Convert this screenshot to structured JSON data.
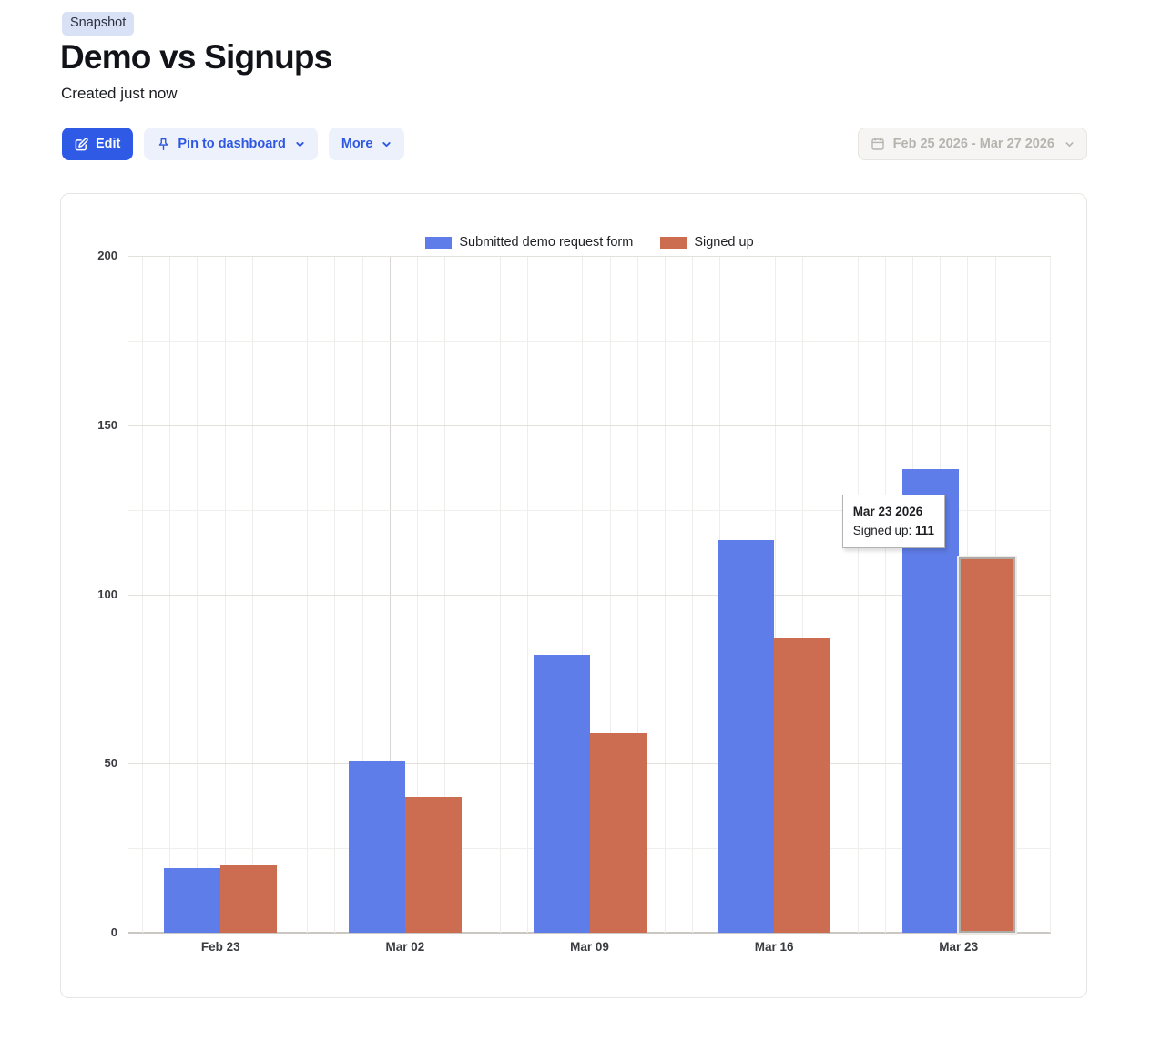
{
  "page": {
    "badge": "Snapshot",
    "title": "Demo vs Signups",
    "subtitle": "Created just now"
  },
  "toolbar": {
    "edit_label": "Edit",
    "pin_label": "Pin to dashboard",
    "more_label": "More",
    "date_range": "Feb 25 2026 - Mar 27 2026"
  },
  "colors": {
    "primary_blue": "#2f5ae5",
    "light_button_bg": "#edf1fb",
    "light_button_text": "#2f58e0",
    "series_blue": "#5f7de8",
    "series_red": "#cc6d52",
    "date_text_gray": "#b7b4af"
  },
  "chart_data": {
    "type": "bar",
    "title": "",
    "categories": [
      "Feb 23",
      "Mar 02",
      "Mar 09",
      "Mar 16",
      "Mar 23"
    ],
    "series": [
      {
        "name": "Submitted demo request form",
        "color": "#5f7de8",
        "values": [
          19,
          51,
          82,
          116,
          137
        ]
      },
      {
        "name": "Signed up",
        "color": "#cc6d52",
        "values": [
          20,
          40,
          59,
          87,
          111
        ]
      }
    ],
    "xlabel": "",
    "ylabel": "",
    "ylim": [
      0,
      200
    ],
    "yticks": [
      0,
      50,
      100,
      150,
      200
    ],
    "minor_yticks": [
      25,
      75,
      125,
      175
    ],
    "grid": "fine",
    "legend_position": "top",
    "tooltip": {
      "title": "Mar 23 2026",
      "series_label": "Signed up",
      "value": "111",
      "category_index": 4,
      "series_index": 1
    }
  }
}
